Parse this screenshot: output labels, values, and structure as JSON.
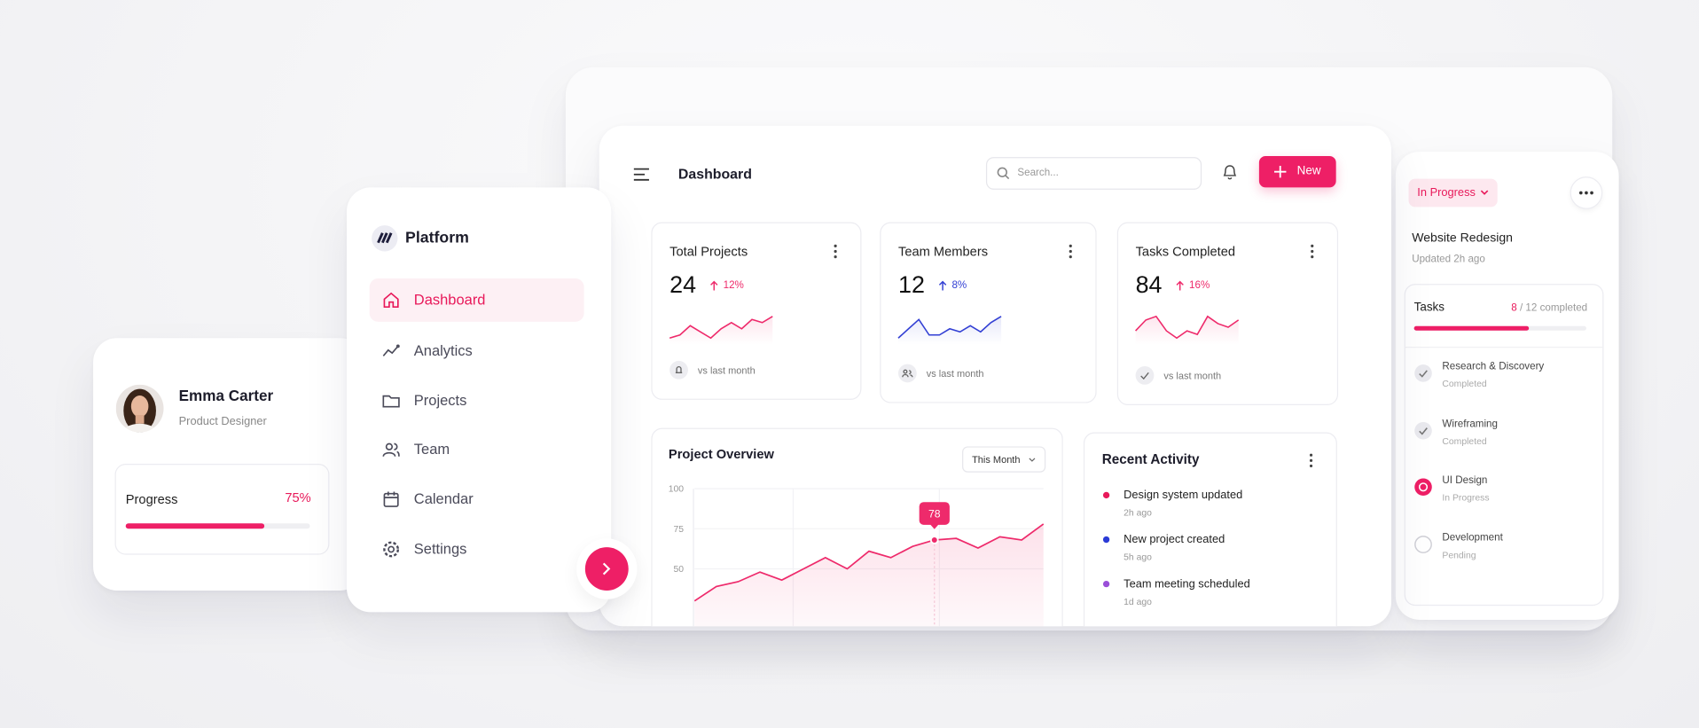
{
  "profile": {
    "name": "Emma Carter",
    "role": "Product Designer",
    "progress": {
      "label": "Progress",
      "value": 75,
      "value_label": "75%"
    }
  },
  "sidebar": {
    "brand": "Platform",
    "active": 0,
    "items": [
      {
        "label": "Dashboard",
        "icon": "home"
      },
      {
        "label": "Analytics",
        "icon": "analytics"
      },
      {
        "label": "Projects",
        "icon": "folder"
      },
      {
        "label": "Team",
        "icon": "team"
      },
      {
        "label": "Calendar",
        "icon": "calendar"
      },
      {
        "label": "Settings",
        "icon": "settings"
      }
    ]
  },
  "header": {
    "title": "Dashboard",
    "search_placeholder": "Search...",
    "button": "New"
  },
  "stats": [
    {
      "title": "Total Projects",
      "value": 24,
      "change": "12%",
      "color": "#ee2a6b",
      "footer": "vs last month",
      "trend": [
        2,
        3,
        6,
        4,
        2,
        5,
        7,
        5,
        8,
        7,
        9
      ]
    },
    {
      "title": "Team Members",
      "value": 12,
      "change": "8%",
      "color": "#3340d4",
      "footer": "vs last month",
      "trend": [
        3,
        6,
        9,
        4,
        4,
        6,
        5,
        7,
        5,
        8,
        10
      ]
    },
    {
      "title": "Tasks Completed",
      "value": 84,
      "change": "16%",
      "color": "#ee2a6b",
      "footer": "vs last month",
      "trend": [
        4,
        7,
        8,
        4,
        2,
        4,
        3,
        8,
        6,
        5,
        7
      ]
    }
  ],
  "overview": {
    "title": "Project Overview",
    "filter": "This Month",
    "ylim": [
      25,
      100
    ],
    "yticks": [
      50,
      75,
      100
    ],
    "color": "#ee2a6b",
    "values": [
      30,
      39,
      42,
      48,
      43,
      50,
      57,
      50,
      61,
      57,
      64,
      68,
      69,
      63,
      70,
      68,
      78
    ],
    "tooltip": 78
  },
  "activity": {
    "title": "Recent Activity",
    "items": [
      {
        "text": "Design system updated",
        "time": "2h ago",
        "color": "#e8195a"
      },
      {
        "text": "New project created",
        "time": "5h ago",
        "color": "#2b3bd6"
      },
      {
        "text": "Team meeting scheduled",
        "time": "1d ago",
        "color": "#9a4fd8"
      }
    ]
  },
  "project": {
    "status": "In Progress",
    "name": "Website Redesign",
    "updated": "Updated 2h ago",
    "tasks": {
      "title": "Tasks",
      "done": 8,
      "total": 12,
      "rest": "/ 12 completed",
      "items": [
        {
          "name": "Research & Discovery",
          "status": "Completed",
          "state": "done"
        },
        {
          "name": "Wireframing",
          "status": "Completed",
          "state": "done"
        },
        {
          "name": "UI Design",
          "status": "In Progress",
          "state": "active"
        },
        {
          "name": "Development",
          "status": "Pending",
          "state": "pending"
        }
      ]
    }
  }
}
